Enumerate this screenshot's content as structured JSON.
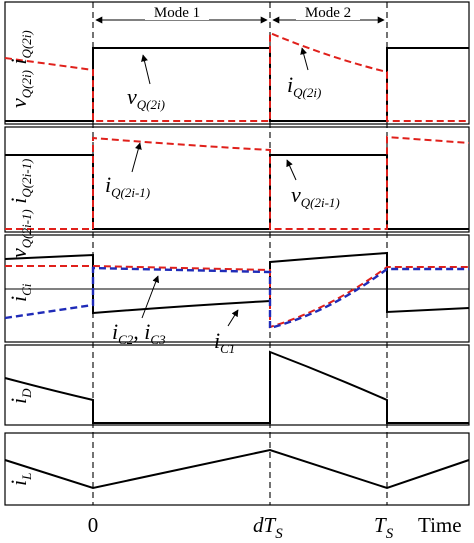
{
  "modes": {
    "mode1": "Mode 1",
    "mode2": "Mode 2"
  },
  "ticks": {
    "zero": "0",
    "dTs_base": "dT",
    "dTs_sub": "S",
    "Ts_base": "T",
    "Ts_sub": "S",
    "time": "Time"
  },
  "panels": [
    {
      "id": "vq2i",
      "ylabel": "v_Q(2i), i_Q(2i)"
    },
    {
      "id": "vq2i-1",
      "ylabel": "v_Q(2i-1), i_Q(2i-1)"
    },
    {
      "id": "ici",
      "ylabel": "i_Ci"
    },
    {
      "id": "id",
      "ylabel": "i_D"
    },
    {
      "id": "il",
      "ylabel": "i_L"
    }
  ],
  "annotations": {
    "vq2i": {
      "base": "v",
      "sub": "Q(2i)"
    },
    "iq2i": {
      "base": "i",
      "sub": "Q(2i)"
    },
    "iq2i_1": {
      "base": "i",
      "sub": "Q(2i-1)"
    },
    "vq2i_1": {
      "base": "v",
      "sub": "Q(2i-1)"
    },
    "ic2ic3": {
      "base1": "i",
      "sub1": "C2",
      "sep": ", ",
      "base2": "i",
      "sub2": "C3"
    },
    "ic1": {
      "base": "i",
      "sub": "C1"
    }
  },
  "ylabels": {
    "p1": {
      "a": "v",
      "as": "Q(2i)",
      "b": " i",
      "bs": "Q(2i)"
    },
    "p2": {
      "a": "v",
      "as": "Q(2i-1)",
      "b": " i",
      "bs": "Q(2i-1)"
    },
    "p3": {
      "a": "i",
      "as": "Ci"
    },
    "p4": {
      "a": "i",
      "as": "D"
    },
    "p5": {
      "a": "i",
      "as": "L"
    }
  },
  "colors": {
    "voltage": "#000000",
    "current_dashed": "#e0201b",
    "ic2_ic3": "#1f2bb8"
  }
}
